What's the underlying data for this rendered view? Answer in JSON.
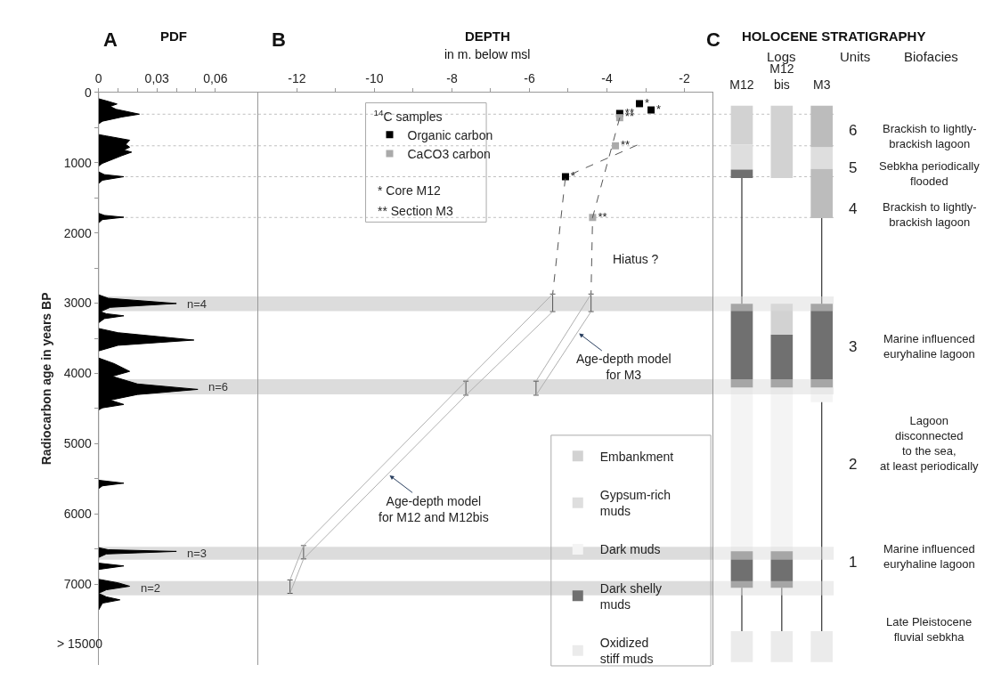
{
  "chart_data": [
    {
      "type": "area",
      "orientation": "horizontal",
      "title": "A",
      "xlabel": "PDF",
      "ylabel": "Radiocarbon age in years BP",
      "grid": false,
      "legend": false,
      "x": [
        0,
        90,
        120,
        165,
        200,
        240,
        310,
        350,
        410,
        450,
        600,
        620,
        680,
        740,
        780,
        820,
        850,
        900,
        1010,
        1050,
        1130,
        1170,
        1200,
        1250,
        1300,
        1720,
        1750,
        1777,
        1810,
        1860,
        2880,
        2930,
        3004,
        3060,
        3120,
        3150,
        3180,
        3220,
        3280,
        3360,
        3420,
        3525,
        3600,
        3680,
        3780,
        3860,
        3971,
        4041,
        4150,
        4227,
        4300,
        4380,
        4442,
        4490,
        4520,
        5520,
        5562,
        5600,
        5640,
        6480,
        6510,
        6533,
        6570,
        6620,
        6700,
        6740,
        6790,
        6930,
        6980,
        7029,
        7080,
        7130,
        7180,
        7223,
        7270,
        7370
      ],
      "series": [
        {
          "color": "#000000",
          "values": [
            0,
            0,
            0.004,
            0.0095,
            0.006,
            0.009,
            0.021,
            0.012,
            0.002,
            0,
            0,
            0.004,
            0.016,
            0.014,
            0.016,
            0.013,
            0.017,
            0.012,
            0.002,
            0,
            0,
            0.003,
            0.013,
            0.002,
            0,
            0,
            0.003,
            0.013,
            0.002,
            0,
            0,
            0.005,
            0.04,
            0.006,
            0.001,
            0.004,
            0.013,
            0.003,
            0,
            0,
            0.01,
            0.049,
            0.01,
            0,
            0,
            0.008,
            0.016,
            0.007,
            0.02,
            0.051,
            0.02,
            0.006,
            0.013,
            0.002,
            0,
            0,
            0.013,
            0.002,
            0,
            0,
            0.005,
            0.04,
            0.004,
            0,
            0,
            0.013,
            0,
            0,
            0.01,
            0.016,
            0.004,
            0,
            0.004,
            0.011,
            0.002,
            0
          ]
        }
      ],
      "xlim": [
        0,
        0.082
      ],
      "xticks": [
        0,
        {
          "value": 0.01,
          "label": null
        },
        {
          "value": 0.02,
          "label": null
        },
        {
          "value": 0.03,
          "label": "0,03"
        },
        {
          "value": 0.04,
          "label": null
        },
        {
          "value": 0.05,
          "label": null
        },
        {
          "value": 0.06,
          "label": "0,06"
        }
      ],
      "ylim": [
        8150,
        0
      ],
      "yticks": [
        0,
        {
          "value": 500,
          "label": null
        },
        1000,
        {
          "value": 1500,
          "label": null
        },
        2000,
        {
          "value": 2500,
          "label": null
        },
        3000,
        {
          "value": 3500,
          "label": null
        },
        4000,
        {
          "value": 4500,
          "label": null
        },
        5000,
        {
          "value": 5500,
          "label": null
        },
        6000,
        {
          "value": 6500,
          "label": null
        },
        7000
      ],
      "bands": [
        {
          "axis": "y",
          "from": 2905,
          "to": 3112,
          "label": "n=4",
          "color": "#dcdcdc"
        },
        {
          "axis": "y",
          "from": 4083,
          "to": 4298,
          "label": "n=6",
          "color": "#dcdcdc"
        },
        {
          "axis": "y",
          "from": 6467,
          "to": 6653,
          "label": "n=3",
          "color": "#dcdcdc"
        },
        {
          "axis": "y",
          "from": 6955,
          "to": 7157,
          "label": "n=2",
          "color": "#dcdcdc"
        }
      ],
      "ref_lines": [
        {
          "axis": "y",
          "value": 310,
          "line_style": "dotted",
          "color": "#c0c0c0"
        },
        {
          "axis": "y",
          "value": 760,
          "line_style": "dotted",
          "color": "#c0c0c0"
        },
        {
          "axis": "y",
          "value": 1200,
          "line_style": "dotted",
          "color": "#c0c0c0"
        },
        {
          "axis": "y",
          "value": 1780,
          "line_style": "dotted",
          "color": "#c0c0c0"
        }
      ],
      "annotations": [
        "> 15000"
      ]
    },
    {
      "type": "scatter",
      "title": "B",
      "xlabel": "DEPTH",
      "subtitle": "in m. below msl",
      "legend_title": "$^{14}$C samples",
      "legend": "top left",
      "grid": false,
      "tick_labels": "x",
      "xlim": [
        -13,
        -1.25
      ],
      "xticks": [
        -12,
        {
          "value": -11,
          "label": null
        },
        -10,
        {
          "value": -9,
          "label": null
        },
        -8,
        {
          "value": -7,
          "label": null
        },
        -6,
        {
          "value": -5,
          "label": null
        },
        -4,
        {
          "value": -3,
          "label": null
        },
        -2
      ],
      "ylim": [
        8150,
        0
      ],
      "series": [
        {
          "name": "Organic carbon",
          "color": "#000000",
          "marker": "square",
          "x": [
            -3.16,
            -2.86,
            -3.67,
            -5.07
          ],
          "values": [
            160,
            250,
            300,
            1200
          ],
          "value_labels": [
            "*",
            "*",
            "**",
            "*"
          ]
        },
        {
          "name": "CaCO3 carbon",
          "color": "#aaaaaa",
          "marker": "square",
          "x": [
            -3.67,
            -3.78,
            -4.37
          ],
          "values": [
            360,
            760,
            1780
          ],
          "value_labels": [
            "**",
            "**",
            "**"
          ]
        },
        {
          "type": "line",
          "line_style": "dashed",
          "color": "#555555",
          "x": [
            -3.22,
            -5.07,
            -5.4
          ],
          "values": [
            750,
            1200,
            2870
          ]
        },
        {
          "type": "line",
          "line_style": "dashed",
          "color": "#555555",
          "x": [
            -3.67,
            -4.37,
            -4.41
          ],
          "values": [
            360,
            1780,
            2870
          ]
        },
        {
          "type": "line",
          "color": "#b0b0b0",
          "x": [
            -5.4,
            -7.64,
            -11.83,
            -12.18
          ],
          "values": [
            2870,
            4110,
            6450,
            6940
          ],
          "errors": [
            [
              2870,
              3120
            ],
            [
              4110,
              4310
            ],
            [
              6450,
              6640
            ],
            [
              6940,
              7130
            ]
          ]
        },
        {
          "type": "line",
          "color": "#b0b0b0",
          "x": [
            -5.4,
            -7.64,
            -11.83,
            -12.18
          ],
          "values": [
            3120,
            4310,
            6640,
            7130
          ]
        },
        {
          "type": "line",
          "color": "#b0b0b0",
          "x": [
            -4.41,
            -5.83
          ],
          "values": [
            2870,
            4110
          ],
          "errors": [
            [
              2870,
              3120
            ],
            [
              4110,
              4310
            ]
          ]
        },
        {
          "type": "line",
          "color": "#b0b0b0",
          "x": [
            -4.41,
            -5.83
          ],
          "values": [
            3120,
            4310
          ]
        }
      ],
      "bands": [
        {
          "axis": "y",
          "from": 2905,
          "to": 3112,
          "color": "#dcdcdc"
        },
        {
          "axis": "y",
          "from": 4083,
          "to": 4298,
          "color": "#dcdcdc"
        },
        {
          "axis": "y",
          "from": 6467,
          "to": 6653,
          "color": "#dcdcdc"
        },
        {
          "axis": "y",
          "from": 6955,
          "to": 7157,
          "color": "#dcdcdc"
        }
      ],
      "ref_lines": [
        {
          "axis": "y",
          "value": 310,
          "line_style": "dotted",
          "color": "#c0c0c0"
        },
        {
          "axis": "y",
          "value": 760,
          "line_style": "dotted",
          "color": "#c0c0c0"
        },
        {
          "axis": "y",
          "value": 1200,
          "line_style": "dotted",
          "color": "#c0c0c0"
        },
        {
          "axis": "y",
          "value": 1780,
          "line_style": "dotted",
          "color": "#c0c0c0"
        }
      ],
      "annotations": [
        "* Core M12",
        "** Section M3",
        "Hiatus ?",
        {
          "text": "Age-depth model\nfor M3",
          "x": -4.72,
          "y": 3430
        },
        {
          "text": "Age-depth model\nfor M12 and M12bis",
          "x": -9.61,
          "y": 5450
        }
      ]
    },
    {
      "type": "bar",
      "title": "C",
      "subtitle": "HOLOCENE STRATIGRAPHY",
      "grid": false,
      "tick_labels": "x",
      "legend": "bottom left",
      "categories": [
        "M12",
        "M12\nbis",
        "M3"
      ],
      "ylim": [
        8150,
        0
      ],
      "series": [
        {
          "name": "Embankment",
          "color": "#d2d2d2",
          "base": [
            190,
            190,
            null
          ],
          "values": [
            550,
            1030,
            null
          ]
        },
        {
          "color": "#d2d2d2",
          "base": [
            null,
            3010,
            null
          ],
          "values": [
            null,
            440,
            null
          ]
        },
        {
          "name": "Gypsum-rich\nmuds",
          "color": "#dedede",
          "base": [
            740,
            null,
            780
          ],
          "values": [
            360,
            null,
            310
          ]
        },
        {
          "name": "Dark muds",
          "color": "#f4f4f4",
          "base": [
            4200,
            4200,
            4200
          ],
          "values": [
            2330,
            2330,
            210
          ]
        },
        {
          "name": "Dark shelly\nmuds",
          "color": "#707070",
          "base": [
            3010,
            3450,
            3010
          ],
          "values": [
            1190,
            750,
            1190
          ]
        },
        {
          "color": "#707070",
          "base": [
            6530,
            6530,
            null
          ],
          "values": [
            520,
            520,
            null
          ]
        },
        {
          "color": "#707070",
          "base": [
            1100,
            null,
            null
          ],
          "values": [
            120,
            null,
            null
          ]
        },
        {
          "color": "#bcbcbc",
          "base": [
            null,
            null,
            190
          ],
          "values": [
            null,
            null,
            590
          ]
        },
        {
          "color": "#bcbcbc",
          "base": [
            null,
            null,
            1090
          ],
          "values": [
            null,
            null,
            700
          ]
        },
        {
          "name": "Oxidized\nstiff muds",
          "color": "#ebebeb",
          "base": [
            7670,
            7670,
            7670
          ],
          "values": [
            440,
            440,
            440
          ]
        },
        {
          "type": "line",
          "color": "#333333",
          "x": [
            "M12",
            "M12"
          ],
          "values": [
            1220,
            3010
          ]
        },
        {
          "type": "line",
          "color": "#333333",
          "x": [
            "M3",
            "M3"
          ],
          "values": [
            1790,
            3010
          ]
        },
        {
          "type": "line",
          "color": "#333333",
          "x": [
            "M12",
            "M12"
          ],
          "values": [
            7050,
            7670
          ]
        },
        {
          "type": "line",
          "color": "#333333",
          "x": [
            "M12\nbis",
            "M12\nbis"
          ],
          "values": [
            7050,
            7670
          ]
        },
        {
          "type": "line",
          "color": "#333333",
          "x": [
            "M3",
            "M3"
          ],
          "values": [
            4410,
            7670
          ]
        }
      ],
      "bands": [
        {
          "axis": "y",
          "from": 2905,
          "to": 3112,
          "color": "#dcdcdc"
        },
        {
          "axis": "y",
          "from": 4083,
          "to": 4298,
          "color": "#dcdcdc"
        },
        {
          "axis": "y",
          "from": 6467,
          "to": 6653,
          "color": "#dcdcdc"
        },
        {
          "axis": "y",
          "from": 6955,
          "to": 7157,
          "color": "#dcdcdc"
        }
      ],
      "ref_lines": [
        {
          "axis": "y",
          "value": 310,
          "line_style": "dotted",
          "color": "#c0c0c0"
        },
        {
          "axis": "y",
          "value": 760,
          "line_style": "dotted",
          "color": "#c0c0c0"
        },
        {
          "axis": "y",
          "value": 1200,
          "line_style": "dotted",
          "color": "#c0c0c0"
        },
        {
          "axis": "y",
          "value": 1780,
          "line_style": "dotted",
          "color": "#c0c0c0"
        }
      ],
      "annotations": [
        "Logs",
        "Units",
        "Biofacies",
        "6",
        "5",
        "4",
        "3",
        "2",
        "1",
        "Brackish to lightly-\nbrackish lagoon",
        "Sebkha periodically\nflooded",
        "Brackish to lightly-\nbrackish lagoon",
        "Marine influenced\neuryhaline lagoon",
        "Lagoon\ndisconnected\nto the sea,\nat least periodically",
        "Marine influenced\neuryhaline lagoon",
        "Late Pleistocene\nfluvial sebkha"
      ]
    }
  ]
}
